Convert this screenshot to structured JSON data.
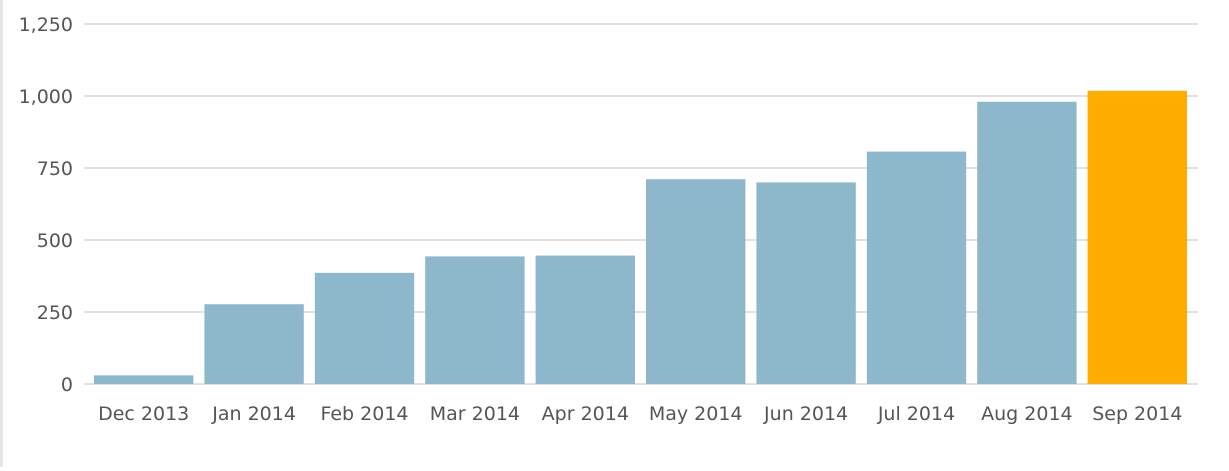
{
  "chart_data": {
    "type": "bar",
    "title": "",
    "xlabel": "",
    "ylabel": "",
    "categories": [
      "Dec 2013",
      "Jan 2014",
      "Feb 2014",
      "Mar 2014",
      "Apr 2014",
      "May 2014",
      "Jun 2014",
      "Jul 2014",
      "Aug 2014",
      "Sep 2014"
    ],
    "values": [
      30,
      277,
      386,
      443,
      446,
      711,
      700,
      807,
      980,
      1018
    ],
    "ylim": [
      0,
      1250
    ],
    "yticks": [
      0,
      250,
      500,
      750,
      1000,
      1250
    ],
    "ytick_labels": [
      "0",
      "250",
      "500",
      "750",
      "1,000",
      "1,250"
    ],
    "grid": true,
    "legend": "none",
    "colors": {
      "bar": "#8db8cb",
      "highlight": "#ffab00",
      "grid": "#e0e0e0",
      "text": "#555555"
    },
    "highlight_index": 9
  }
}
